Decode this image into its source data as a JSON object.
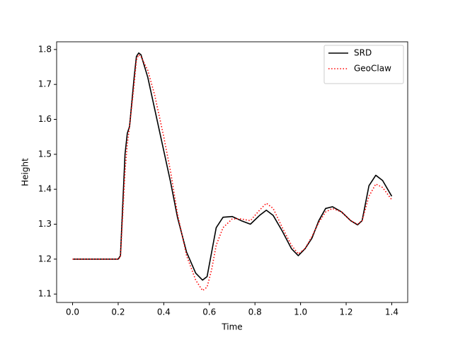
{
  "chart_data": {
    "type": "line",
    "xlabel": "Time",
    "ylabel": "Height",
    "x": [
      0,
      0.2,
      0.21,
      0.23,
      0.24,
      0.25,
      0.27,
      0.28,
      0.29,
      0.3,
      0.33,
      0.36,
      0.4,
      0.43,
      0.46,
      0.5,
      0.54,
      0.57,
      0.59,
      0.61,
      0.63,
      0.66,
      0.7,
      0.74,
      0.78,
      0.82,
      0.85,
      0.88,
      0.92,
      0.96,
      0.99,
      1.02,
      1.05,
      1.08,
      1.11,
      1.14,
      1.18,
      1.22,
      1.25,
      1.27,
      1.3,
      1.33,
      1.36,
      1.4
    ],
    "series": [
      {
        "name": "SRD",
        "color": "#000000",
        "style": "solid",
        "values": [
          1.2,
          1.2,
          1.21,
          1.5,
          1.56,
          1.58,
          1.72,
          1.78,
          1.79,
          1.785,
          1.72,
          1.63,
          1.51,
          1.42,
          1.32,
          1.22,
          1.16,
          1.14,
          1.15,
          1.22,
          1.29,
          1.32,
          1.322,
          1.31,
          1.3,
          1.325,
          1.34,
          1.325,
          1.28,
          1.23,
          1.21,
          1.23,
          1.26,
          1.31,
          1.345,
          1.35,
          1.335,
          1.31,
          1.298,
          1.31,
          1.41,
          1.44,
          1.425,
          1.38
        ]
      },
      {
        "name": "GeoClaw",
        "color": "#ff0000",
        "style": "dotted",
        "values": [
          1.2,
          1.2,
          1.205,
          1.45,
          1.53,
          1.58,
          1.7,
          1.77,
          1.785,
          1.78,
          1.74,
          1.67,
          1.55,
          1.45,
          1.33,
          1.21,
          1.14,
          1.11,
          1.12,
          1.17,
          1.24,
          1.29,
          1.315,
          1.315,
          1.31,
          1.34,
          1.36,
          1.345,
          1.29,
          1.24,
          1.215,
          1.23,
          1.265,
          1.305,
          1.335,
          1.345,
          1.335,
          1.31,
          1.3,
          1.31,
          1.38,
          1.415,
          1.405,
          1.37
        ]
      }
    ],
    "xlim": [
      -0.07,
      1.47
    ],
    "ylim": [
      1.076,
      1.822
    ],
    "xticks": [
      {
        "value": 0,
        "label": "0.0"
      },
      0.2,
      0.4,
      0.6,
      0.8,
      {
        "value": 1,
        "label": "1.0"
      },
      1.2,
      1.4
    ],
    "yticks": [
      1.1,
      1.2,
      1.3,
      1.4,
      1.5,
      1.6,
      1.7,
      1.8
    ],
    "legend": "upper right"
  }
}
